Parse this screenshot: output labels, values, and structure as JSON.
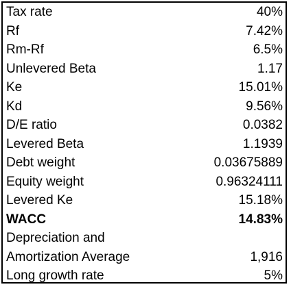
{
  "rows": [
    {
      "label": "Tax rate",
      "value": "40%"
    },
    {
      "label": "Rf",
      "value": "7.42%"
    },
    {
      "label": "Rm-Rf",
      "value": "6.5%"
    },
    {
      "label": "Unlevered Beta",
      "value": "1.17"
    },
    {
      "label": "Ke",
      "value": "15.01%"
    },
    {
      "label": "Kd",
      "value": "9.56%"
    },
    {
      "label": "D/E ratio",
      "value": "0.0382"
    },
    {
      "label": "Levered Beta",
      "value": "1.1939"
    },
    {
      "label": "Debt weight",
      "value": "0.03675889"
    },
    {
      "label": "Equity weight",
      "value": "0.96324111"
    },
    {
      "label": "Levered Ke",
      "value": "15.18%"
    },
    {
      "label": "WACC",
      "value": "14.83%"
    },
    {
      "label": "Depreciation and",
      "value": ""
    },
    {
      "label": "Amortization Average",
      "value": "1,916"
    },
    {
      "label": "Long growth rate",
      "value": "5%"
    }
  ]
}
